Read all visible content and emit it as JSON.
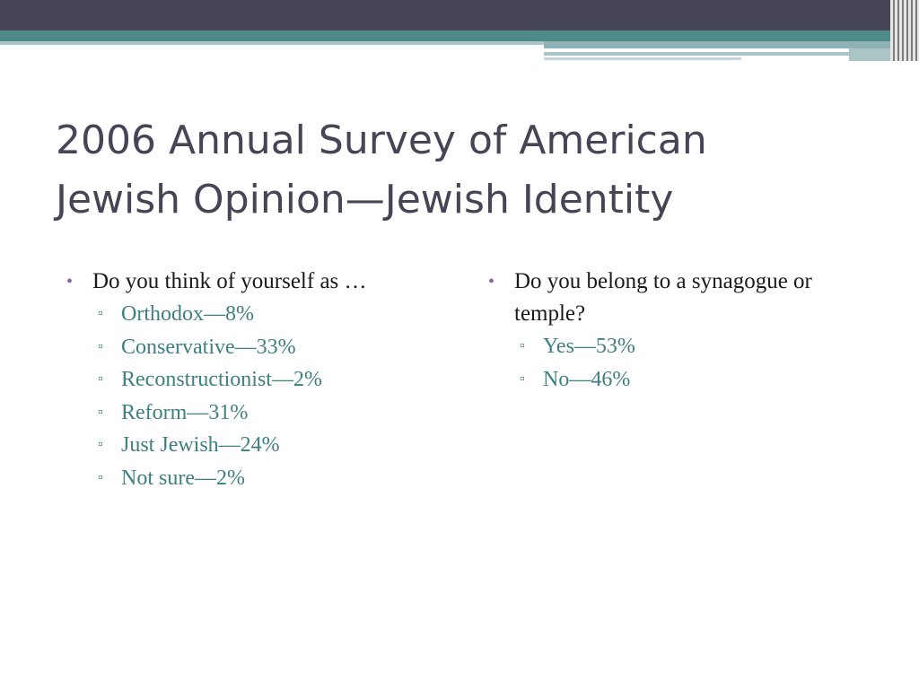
{
  "slide": {
    "title_line1": "2006 Annual Survey of American",
    "title_line2": "Jewish Opinion—Jewish Identity"
  },
  "left": {
    "question": "Do you think of yourself as …",
    "answers": [
      "Orthodox—8%",
      "Conservative—33%",
      "Reconstructionist—2%",
      "Reform—31%",
      "Just Jewish—24%",
      "Not sure—2%"
    ]
  },
  "right": {
    "question": "Do you belong to a synagogue or temple?",
    "answers": [
      "Yes—53%",
      "No—46%"
    ]
  },
  "icons": {
    "bullet_level1": "•",
    "bullet_level2": "▫"
  },
  "colors": {
    "title": "#454556",
    "accent_bullet": "#8a63a8",
    "subitem": "#3e7f81",
    "header_dark": "#454556",
    "header_teal": "#4f8a8b"
  }
}
